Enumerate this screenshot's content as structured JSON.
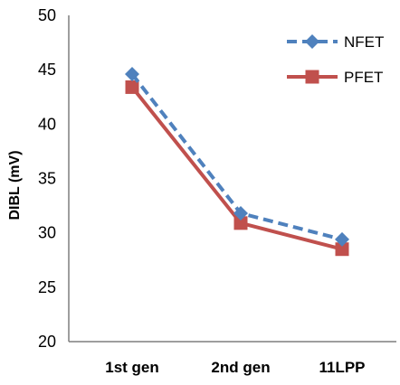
{
  "chart_data": {
    "type": "line",
    "categories": [
      "1st gen",
      "2nd gen",
      "11LPP"
    ],
    "series": [
      {
        "name": "NFET",
        "values": [
          44.6,
          31.8,
          29.4
        ],
        "color": "#4f81bd",
        "line_style": "dashed",
        "marker": "diamond"
      },
      {
        "name": "PFET",
        "values": [
          43.4,
          30.9,
          28.5
        ],
        "color": "#c0504d",
        "line_style": "solid",
        "marker": "square"
      }
    ],
    "title": "",
    "xlabel": "",
    "ylabel": "DIBL (mV)",
    "ylim": [
      20,
      50
    ],
    "yticks": [
      "20",
      "25",
      "30",
      "35",
      "40",
      "45",
      "50"
    ],
    "grid": false,
    "legend_position": "top-right"
  }
}
